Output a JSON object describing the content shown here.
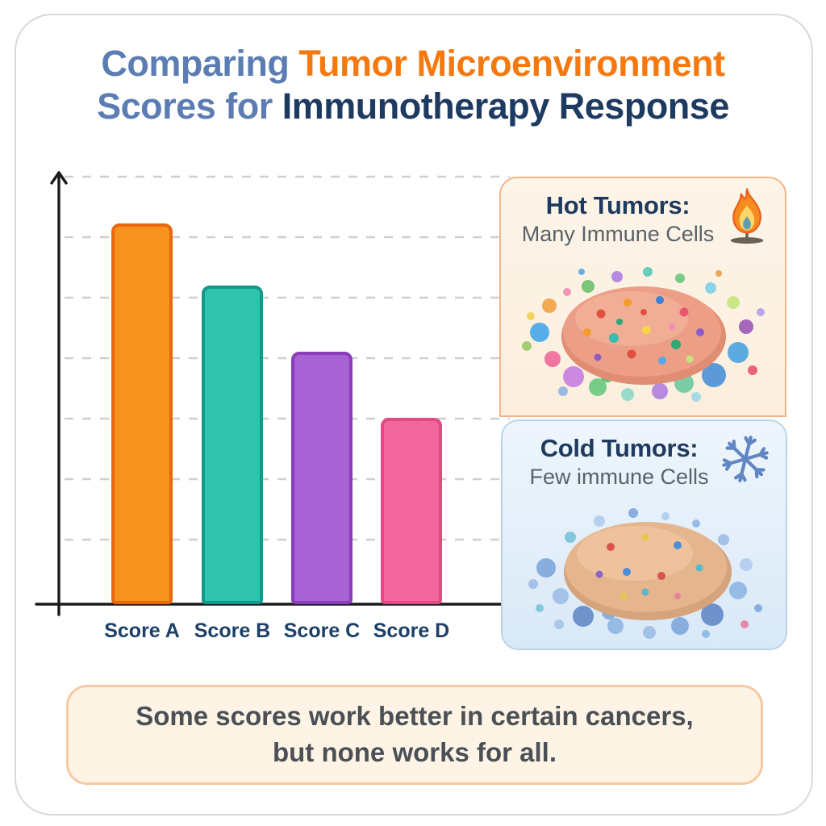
{
  "title": {
    "line1_part1": "Comparing ",
    "line1_part2": "Tumor Microenvironment",
    "line2_part1": "Scores for ",
    "line2_part2": "Immunotherapy Response",
    "colors": {
      "blue": "#5b7db3",
      "orange": "#f6790f",
      "navy": "#1d3a60"
    }
  },
  "chart_data": {
    "type": "bar",
    "categories": [
      "Score A",
      "Score B",
      "Score C",
      "Score D"
    ],
    "values": [
      86,
      72,
      57,
      42
    ],
    "bar_colors": [
      "#f8921f",
      "#2fc3ae",
      "#a763d3",
      "#f4679d"
    ],
    "bar_border_colors": [
      "#e8680e",
      "#11998a",
      "#8a3cbb",
      "#e04b84"
    ],
    "title": "",
    "xlabel": "",
    "ylabel": "",
    "ylim": [
      0,
      100
    ],
    "y_axis_tick_labels_shown": false,
    "grid": "horizontal dashed gridlines, no numeric labels",
    "legend": "none",
    "note": "values estimated from bar heights; no numeric axis labels shown in image"
  },
  "panels": {
    "hot": {
      "title": "Hot Tumors:",
      "subtitle": "Many Immune Cells",
      "icon": "flame-icon",
      "background": "#fdf3e3",
      "border": "#f2b488"
    },
    "cold": {
      "title": "Cold Tumors:",
      "subtitle": "Few immune Cells",
      "icon": "snowflake-icon",
      "background": "#e3eef9",
      "border": "#b9d3ea"
    }
  },
  "footnote": {
    "line1": "Some scores work better in certain cancers,",
    "line2": "but none works for all."
  }
}
